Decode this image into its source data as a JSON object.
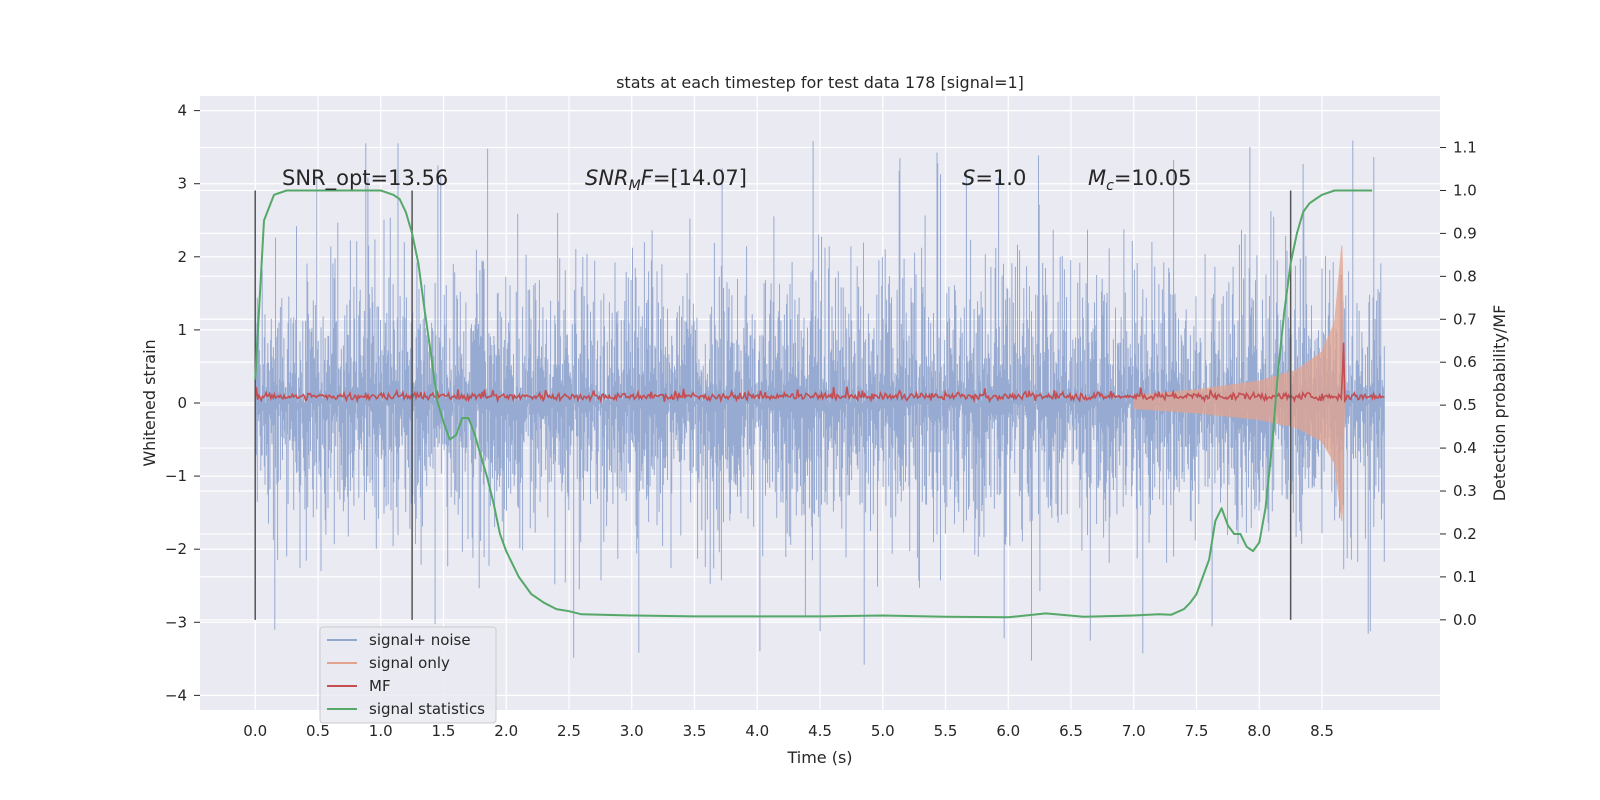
{
  "chart_data": {
    "type": "line",
    "title": "stats at each timestep for test data 178 [signal=1]",
    "xlabel": "Time (s)",
    "ylabel": "Whitened strain",
    "y2label": "Detection probability/MF",
    "xlim": [
      -0.44,
      9.44
    ],
    "ylim": [
      -4.2,
      4.2
    ],
    "y2lim": [
      -0.21,
      1.22
    ],
    "x_ticks": [
      "0.0",
      "0.5",
      "1.0",
      "1.5",
      "2.0",
      "2.5",
      "3.0",
      "3.5",
      "4.0",
      "4.5",
      "5.0",
      "5.5",
      "6.0",
      "6.5",
      "7.0",
      "7.5",
      "8.0",
      "8.5"
    ],
    "y_ticks": [
      "4",
      "3",
      "2",
      "1",
      "0",
      "−1",
      "−2",
      "−3",
      "−4"
    ],
    "y2_ticks": [
      "1.1",
      "1.0",
      "0.9",
      "0.8",
      "0.7",
      "0.6",
      "0.5",
      "0.4",
      "0.3",
      "0.2",
      "0.1",
      "0.0"
    ],
    "grid": true,
    "legend_position": "lower-left",
    "annotations": {
      "snr_opt": "SNR_opt=13.56",
      "snr_mf_prefix": "SNR",
      "snr_mf_sub": "M",
      "snr_mf_suffix": "F=[14.07]",
      "s_sym": "S",
      "s_val": "=1.0",
      "mc_sym": "M",
      "mc_sub": "c",
      "mc_val": "=10.05"
    },
    "vertical_markers": [
      0.0,
      1.25,
      8.25
    ],
    "series": [
      {
        "name": "signal+ noise",
        "color": "#92a6cf",
        "envelope": {
          "x": [
            0.0,
            9.0
          ],
          "typical_abs": 2.2,
          "peak_abs": 3.6
        }
      },
      {
        "name": "signal only",
        "color": "#e3a48f",
        "x": [
          7.0,
          7.5,
          8.0,
          8.3,
          8.5,
          8.6,
          8.66,
          8.68
        ],
        "amplitude": [
          0.1,
          0.18,
          0.3,
          0.45,
          0.7,
          1.1,
          2.2,
          0.0
        ]
      },
      {
        "name": "MF",
        "color": "#c44e52",
        "baseline": 0.09,
        "spike": {
          "x": 8.67,
          "y": 1.0
        }
      },
      {
        "name": "signal statistics",
        "color": "#55a868",
        "x": [
          0.0,
          0.03,
          0.07,
          0.15,
          0.25,
          0.5,
          0.8,
          1.0,
          1.1,
          1.15,
          1.2,
          1.25,
          1.3,
          1.35,
          1.4,
          1.45,
          1.5,
          1.55,
          1.6,
          1.65,
          1.7,
          1.75,
          1.8,
          1.85,
          1.9,
          1.95,
          2.0,
          2.1,
          2.2,
          2.3,
          2.4,
          2.5,
          2.6,
          3.0,
          3.5,
          4.0,
          4.5,
          5.0,
          5.5,
          6.0,
          6.3,
          6.6,
          7.0,
          7.2,
          7.3,
          7.4,
          7.45,
          7.5,
          7.55,
          7.6,
          7.65,
          7.7,
          7.75,
          7.8,
          7.85,
          7.9,
          7.95,
          8.0,
          8.05,
          8.1,
          8.15,
          8.2,
          8.25,
          8.3,
          8.35,
          8.4,
          8.45,
          8.5,
          8.6,
          8.7,
          8.8,
          8.9
        ],
        "values": [
          0.56,
          0.72,
          0.93,
          0.99,
          1.0,
          1.0,
          1.0,
          1.0,
          0.99,
          0.98,
          0.95,
          0.9,
          0.83,
          0.72,
          0.62,
          0.51,
          0.46,
          0.42,
          0.43,
          0.47,
          0.47,
          0.43,
          0.38,
          0.33,
          0.27,
          0.2,
          0.16,
          0.1,
          0.06,
          0.04,
          0.025,
          0.02,
          0.013,
          0.01,
          0.008,
          0.008,
          0.008,
          0.01,
          0.007,
          0.006,
          0.015,
          0.007,
          0.01,
          0.013,
          0.012,
          0.025,
          0.04,
          0.06,
          0.1,
          0.14,
          0.23,
          0.26,
          0.22,
          0.2,
          0.2,
          0.17,
          0.16,
          0.18,
          0.26,
          0.4,
          0.58,
          0.72,
          0.83,
          0.9,
          0.95,
          0.97,
          0.98,
          0.99,
          1.0,
          1.0,
          1.0,
          1.0
        ]
      }
    ]
  }
}
